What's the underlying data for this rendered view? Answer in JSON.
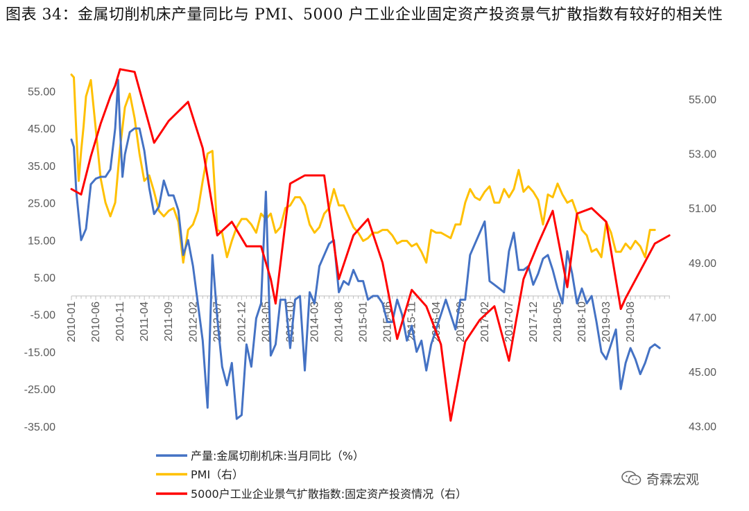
{
  "title": "图表 34：金属切削机床产量同比与 PMI、5000 户工业企业固定资产投资景气扩散指数有较好的相关性",
  "watermark": {
    "text": "奇霖宏观",
    "icon": "wechat-icon"
  },
  "chart_data": {
    "type": "line",
    "title": "",
    "xlabel": "",
    "ylabel": "",
    "y_left": {
      "ylim": [
        -35,
        60
      ],
      "ticks": [
        "55.00",
        "45.00",
        "35.00",
        "25.00",
        "15.00",
        "5.00",
        "-5.00",
        "-15.00",
        "-25.00",
        "-35.00"
      ]
    },
    "y_right": {
      "ylim": [
        43,
        56.2
      ],
      "ticks": [
        "55.00",
        "53.00",
        "51.00",
        "49.00",
        "47.00",
        "45.00",
        "43.00"
      ]
    },
    "x_tick_labels": [
      "2010-01",
      "2010-06",
      "2010-11",
      "2011-04",
      "2011-09",
      "2012-02",
      "2012-07",
      "2012-12",
      "2013-05",
      "2013-10",
      "2014-03",
      "2014-08",
      "2015-01",
      "2015-06",
      "2015-11",
      "2016-04",
      "2016-09",
      "2017-02",
      "2017-07",
      "2017-12",
      "2018-05",
      "2018-10",
      "2019-03",
      "2019-08"
    ],
    "x_tick_months": [
      0,
      5,
      10,
      15,
      20,
      25,
      30,
      35,
      40,
      45,
      50,
      55,
      60,
      65,
      70,
      75,
      80,
      85,
      90,
      95,
      100,
      105,
      110,
      115
    ],
    "grid": false,
    "legend": "bottom",
    "series": [
      {
        "name": "产量:金属切削机床:当月同比（%）",
        "axis": "left",
        "color": "#4472C4",
        "points": [
          [
            0,
            42
          ],
          [
            0.5,
            40
          ],
          [
            1,
            28
          ],
          [
            2,
            15
          ],
          [
            3,
            18
          ],
          [
            4,
            30
          ],
          [
            5,
            31.5
          ],
          [
            6,
            32
          ],
          [
            7,
            32
          ],
          [
            8,
            34
          ],
          [
            9,
            45
          ],
          [
            9.6,
            58
          ],
          [
            10,
            45
          ],
          [
            10.5,
            32
          ],
          [
            11,
            38
          ],
          [
            12,
            44
          ],
          [
            13,
            45
          ],
          [
            14,
            45
          ],
          [
            15,
            39
          ],
          [
            16,
            29
          ],
          [
            17,
            22
          ],
          [
            18,
            24
          ],
          [
            19,
            31
          ],
          [
            20,
            27
          ],
          [
            21,
            27
          ],
          [
            22,
            23
          ],
          [
            23,
            11
          ],
          [
            24,
            15
          ],
          [
            25,
            8
          ],
          [
            26,
            -2
          ],
          [
            27,
            -12
          ],
          [
            28,
            -30
          ],
          [
            29,
            11
          ],
          [
            30,
            -6
          ],
          [
            31,
            -19
          ],
          [
            32,
            -24
          ],
          [
            33,
            -18
          ],
          [
            34,
            -33
          ],
          [
            35,
            -32
          ],
          [
            36,
            -13
          ],
          [
            37,
            -19
          ],
          [
            38,
            -6
          ],
          [
            39,
            -2
          ],
          [
            40,
            28
          ],
          [
            41,
            -16
          ],
          [
            42,
            -13
          ],
          [
            43,
            -1
          ],
          [
            44,
            -1
          ],
          [
            45,
            -14
          ],
          [
            46,
            -1
          ],
          [
            47,
            0
          ],
          [
            48,
            -20
          ],
          [
            49,
            1
          ],
          [
            50,
            -2
          ],
          [
            51,
            8
          ],
          [
            52,
            11
          ],
          [
            53,
            14
          ],
          [
            54,
            15
          ],
          [
            55,
            1
          ],
          [
            56,
            4
          ],
          [
            57,
            3
          ],
          [
            58,
            7
          ],
          [
            59,
            4
          ],
          [
            60,
            4
          ],
          [
            61,
            -1
          ],
          [
            62,
            0
          ],
          [
            63,
            0
          ],
          [
            64,
            -2
          ],
          [
            65,
            -7
          ],
          [
            66,
            -7
          ],
          [
            67,
            -1
          ],
          [
            68,
            -5
          ],
          [
            69,
            -12
          ],
          [
            70,
            -8
          ],
          [
            71,
            -15
          ],
          [
            72,
            -12
          ],
          [
            73,
            -20
          ],
          [
            74,
            -13
          ],
          [
            75,
            -9
          ],
          [
            76,
            -5
          ],
          [
            77,
            -1
          ],
          [
            78,
            -5
          ],
          [
            79,
            -9
          ],
          [
            80,
            -1
          ],
          [
            81,
            -1
          ],
          [
            82,
            11
          ],
          [
            83,
            14
          ],
          [
            84,
            17
          ],
          [
            85,
            20
          ],
          [
            86,
            4
          ],
          [
            87,
            3
          ],
          [
            88,
            2
          ],
          [
            89,
            1
          ],
          [
            90,
            12
          ],
          [
            91,
            17
          ],
          [
            92,
            7
          ],
          [
            93,
            7
          ],
          [
            94,
            8
          ],
          [
            95,
            3
          ],
          [
            96,
            6
          ],
          [
            97,
            10
          ],
          [
            98,
            11
          ],
          [
            99,
            7
          ],
          [
            100,
            2
          ],
          [
            101,
            -2
          ],
          [
            102,
            12
          ],
          [
            103,
            6
          ],
          [
            104,
            -2
          ],
          [
            105,
            2
          ],
          [
            106,
            -2
          ],
          [
            107,
            0
          ],
          [
            108,
            -7
          ],
          [
            109,
            -15
          ],
          [
            110,
            -17
          ],
          [
            111,
            -13
          ],
          [
            112,
            -9
          ],
          [
            113,
            -25
          ],
          [
            114,
            -18
          ],
          [
            115,
            -14
          ],
          [
            116,
            -17
          ],
          [
            117,
            -21
          ],
          [
            118,
            -18
          ],
          [
            119,
            -14
          ],
          [
            120,
            -13
          ],
          [
            121,
            -14
          ]
        ]
      },
      {
        "name": "PMI（右）",
        "axis": "right",
        "color": "#FFC000",
        "points": [
          [
            0,
            55.9
          ],
          [
            0.5,
            55.8
          ],
          [
            1,
            53.8
          ],
          [
            1.5,
            52.0
          ],
          [
            2,
            53.1
          ],
          [
            2.5,
            54.0
          ],
          [
            3,
            55.1
          ],
          [
            4,
            55.7
          ],
          [
            5,
            53.9
          ],
          [
            6,
            52.1
          ],
          [
            7,
            51.2
          ],
          [
            8,
            50.7
          ],
          [
            9,
            51.2
          ],
          [
            10,
            53.2
          ],
          [
            11,
            54.7
          ],
          [
            12,
            55.2
          ],
          [
            13,
            54.3
          ],
          [
            14,
            53.0
          ],
          [
            15,
            52.0
          ],
          [
            16,
            52.2
          ],
          [
            17,
            51.6
          ],
          [
            18,
            50.9
          ],
          [
            19,
            50.7
          ],
          [
            20,
            50.9
          ],
          [
            21,
            51.0
          ],
          [
            22,
            50.5
          ],
          [
            23,
            49.0
          ],
          [
            24,
            50.2
          ],
          [
            25,
            50.4
          ],
          [
            26,
            50.9
          ],
          [
            27,
            52.0
          ],
          [
            28,
            53.0
          ],
          [
            29,
            53.1
          ],
          [
            30,
            50.2
          ],
          [
            31,
            50.1
          ],
          [
            32,
            49.2
          ],
          [
            33,
            49.8
          ],
          [
            34,
            50.3
          ],
          [
            35,
            50.6
          ],
          [
            36,
            50.6
          ],
          [
            37,
            50.4
          ],
          [
            38,
            50.1
          ],
          [
            39,
            50.8
          ],
          [
            40,
            50.6
          ],
          [
            41,
            50.8
          ],
          [
            42,
            50.1
          ],
          [
            43,
            50.3
          ],
          [
            44,
            51.0
          ],
          [
            45,
            51.1
          ],
          [
            46,
            51.4
          ],
          [
            47,
            51.4
          ],
          [
            48,
            51.1
          ],
          [
            49,
            50.4
          ],
          [
            50,
            50.1
          ],
          [
            51,
            50.3
          ],
          [
            52,
            50.8
          ],
          [
            53,
            51.0
          ],
          [
            54,
            51.7
          ],
          [
            55,
            51.1
          ],
          [
            56,
            51.1
          ],
          [
            57,
            50.7
          ],
          [
            58,
            50.3
          ],
          [
            59,
            50.1
          ],
          [
            60,
            49.8
          ],
          [
            61,
            49.9
          ],
          [
            62,
            50.1
          ],
          [
            63,
            50.1
          ],
          [
            64,
            50.2
          ],
          [
            65,
            50.2
          ],
          [
            66,
            50.0
          ],
          [
            67,
            49.7
          ],
          [
            68,
            49.8
          ],
          [
            69,
            49.8
          ],
          [
            70,
            49.6
          ],
          [
            71,
            49.7
          ],
          [
            72,
            49.4
          ],
          [
            73,
            49.0
          ],
          [
            74,
            50.2
          ],
          [
            75,
            50.1
          ],
          [
            76,
            50.1
          ],
          [
            77,
            50.0
          ],
          [
            78,
            49.9
          ],
          [
            79,
            50.4
          ],
          [
            80,
            50.4
          ],
          [
            81,
            51.2
          ],
          [
            82,
            51.7
          ],
          [
            83,
            51.4
          ],
          [
            84,
            51.3
          ],
          [
            85,
            51.6
          ],
          [
            86,
            51.8
          ],
          [
            87,
            51.2
          ],
          [
            88,
            51.2
          ],
          [
            89,
            51.7
          ],
          [
            90,
            51.4
          ],
          [
            91,
            51.7
          ],
          [
            92,
            52.4
          ],
          [
            93,
            51.6
          ],
          [
            94,
            51.8
          ],
          [
            95,
            51.6
          ],
          [
            96,
            51.3
          ],
          [
            97,
            50.4
          ],
          [
            98,
            51.5
          ],
          [
            99,
            51.4
          ],
          [
            100,
            51.9
          ],
          [
            101,
            51.5
          ],
          [
            102,
            51.2
          ],
          [
            103,
            51.3
          ],
          [
            104,
            50.8
          ],
          [
            105,
            50.2
          ],
          [
            106,
            50.0
          ],
          [
            107,
            49.4
          ],
          [
            108,
            49.5
          ],
          [
            109,
            49.2
          ],
          [
            110,
            50.5
          ],
          [
            111,
            50.1
          ],
          [
            112,
            49.4
          ],
          [
            113,
            49.4
          ],
          [
            114,
            49.7
          ],
          [
            115,
            49.5
          ],
          [
            116,
            49.8
          ],
          [
            117,
            49.6
          ],
          [
            118,
            49.2
          ],
          [
            119,
            50.2
          ],
          [
            120,
            50.2
          ]
        ]
      },
      {
        "name": "5000户工业企业景气扩散指数:固定资产投资情况（右）",
        "axis": "right",
        "color": "#FF0000",
        "points": [
          [
            0,
            51.7
          ],
          [
            2,
            51.5
          ],
          [
            4,
            52.9
          ],
          [
            6,
            54.1
          ],
          [
            8,
            55.1
          ],
          [
            9,
            55.5
          ],
          [
            10,
            56.1
          ],
          [
            13,
            56.0
          ],
          [
            17,
            53.4
          ],
          [
            20,
            54.2
          ],
          [
            24,
            54.9
          ],
          [
            27,
            53.2
          ],
          [
            30,
            50.0
          ],
          [
            33,
            50.5
          ],
          [
            36,
            49.6
          ],
          [
            39,
            49.6
          ],
          [
            41,
            48.4
          ],
          [
            42,
            47.5
          ],
          [
            45,
            51.9
          ],
          [
            48,
            52.2
          ],
          [
            52,
            52.2
          ],
          [
            55,
            48.4
          ],
          [
            58,
            50.0
          ],
          [
            61,
            50.6
          ],
          [
            64,
            49.0
          ],
          [
            67,
            46.2
          ],
          [
            70,
            48.0
          ],
          [
            73,
            47.4
          ],
          [
            76,
            46.0
          ],
          [
            78,
            43.2
          ],
          [
            81,
            46.1
          ],
          [
            84,
            46.9
          ],
          [
            87,
            47.4
          ],
          [
            90,
            45.4
          ],
          [
            93,
            48.4
          ],
          [
            96,
            49.7
          ],
          [
            99,
            50.9
          ],
          [
            102,
            48.1
          ],
          [
            104,
            50.8
          ],
          [
            107,
            51.0
          ],
          [
            110,
            50.5
          ],
          [
            113,
            47.3
          ],
          [
            114,
            47.7
          ],
          [
            117,
            48.7
          ],
          [
            120,
            49.7
          ],
          [
            123,
            50.0
          ]
        ]
      }
    ]
  }
}
